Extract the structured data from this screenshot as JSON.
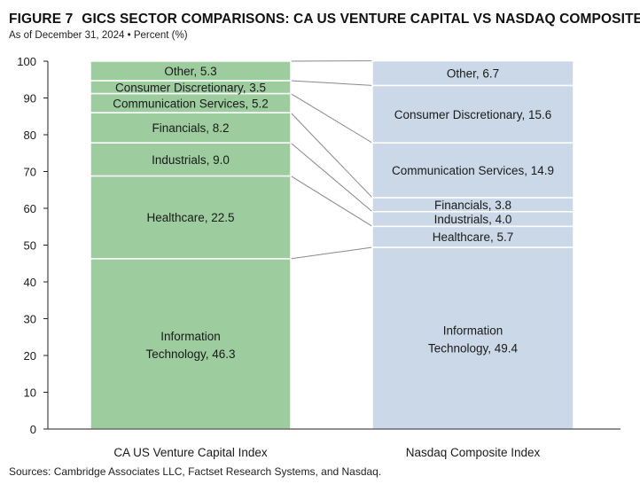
{
  "figure_label": "FIGURE 7",
  "title": "GICS SECTOR COMPARISONS: CA US VENTURE CAPITAL VS NASDAQ COMPOSITE",
  "subtitle": "As of December 31, 2024 • Percent (%)",
  "source": "Sources: Cambridge Associates LLC, Factset Research Systems, and Nasdaq.",
  "colors": {
    "left_bar": "#9dcc9f",
    "right_bar": "#cbd8e7",
    "connector": "#888888",
    "axis": "#222222"
  },
  "chart_data": {
    "type": "bar",
    "stacked": true,
    "ylim": [
      0,
      100
    ],
    "yticks": [
      0,
      10,
      20,
      30,
      40,
      50,
      60,
      70,
      80,
      90,
      100
    ],
    "categories": [
      "CA US Venture Capital Index",
      "Nasdaq Composite Index"
    ],
    "series": [
      {
        "name": "Information Technology",
        "values": [
          46.3,
          49.4
        ]
      },
      {
        "name": "Healthcare",
        "values": [
          22.5,
          5.7
        ]
      },
      {
        "name": "Industrials",
        "values": [
          9.0,
          4.0
        ]
      },
      {
        "name": "Financials",
        "values": [
          8.2,
          3.8
        ]
      },
      {
        "name": "Communication Services",
        "values": [
          5.2,
          14.9
        ]
      },
      {
        "name": "Consumer Discretionary",
        "values": [
          3.5,
          15.6
        ]
      },
      {
        "name": "Other",
        "values": [
          5.3,
          6.7
        ]
      }
    ]
  }
}
